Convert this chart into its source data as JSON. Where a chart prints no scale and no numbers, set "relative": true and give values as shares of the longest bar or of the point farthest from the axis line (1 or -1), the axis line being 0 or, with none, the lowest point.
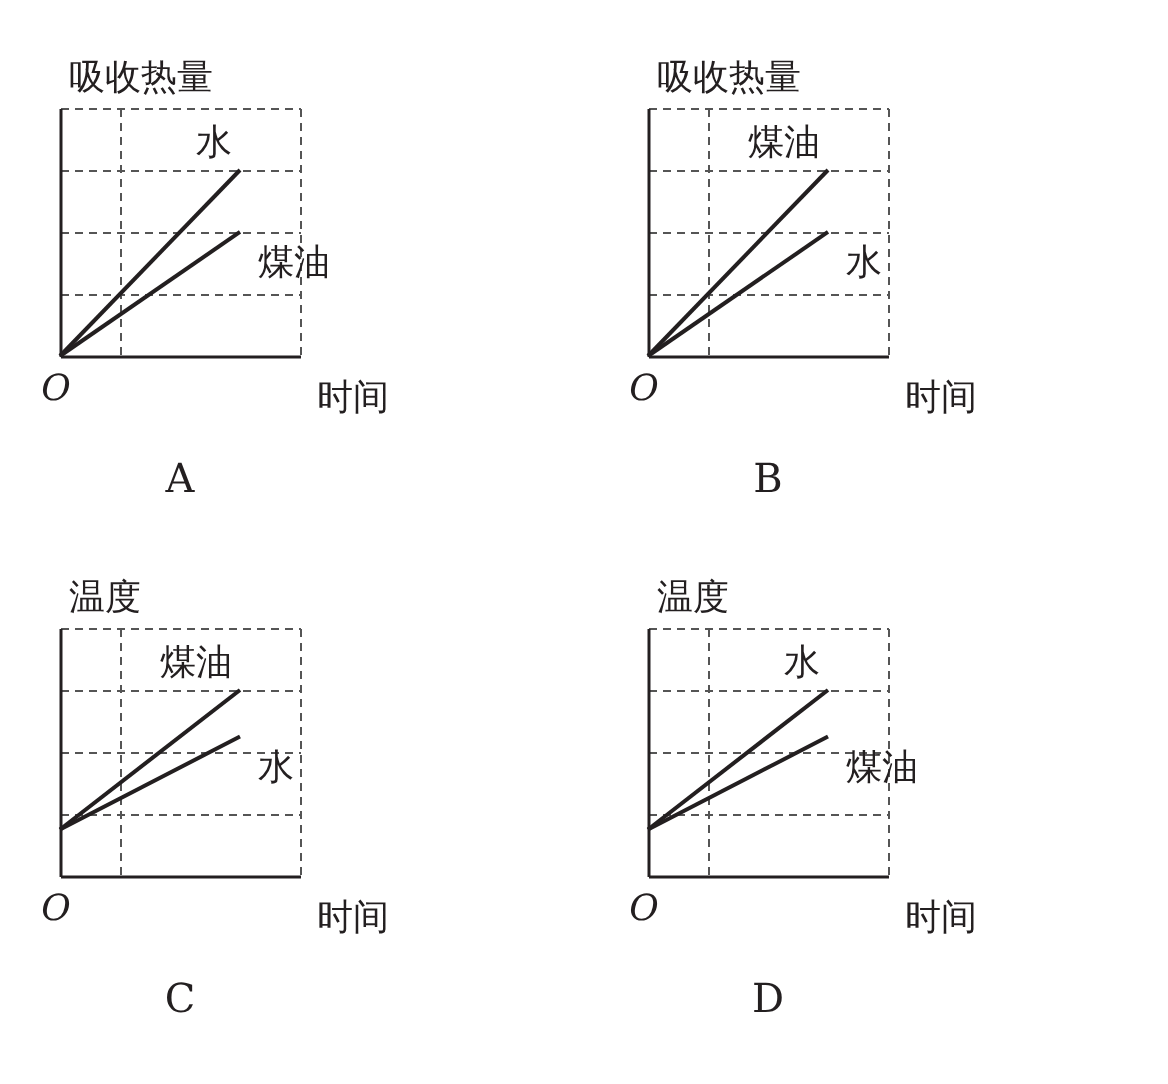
{
  "chart_data": [
    {
      "type": "line",
      "title": "A",
      "xlabel": "时间",
      "ylabel": "吸收热量",
      "categories": [
        null,
        null
      ],
      "relative": true,
      "grid": true,
      "annotations": [
        "O"
      ],
      "series": [
        {
          "name": "水",
          "color": "#231f20",
          "values": [
            0,
            1
          ]
        },
        {
          "name": "煤油",
          "color": "#231f20",
          "values": [
            0,
            0.667
          ]
        }
      ]
    },
    {
      "type": "line",
      "title": "B",
      "xlabel": "时间",
      "ylabel": "吸收热量",
      "categories": [
        null,
        null
      ],
      "relative": true,
      "grid": true,
      "annotations": [
        "O"
      ],
      "series": [
        {
          "name": "煤油",
          "color": "#231f20",
          "values": [
            0,
            1
          ]
        },
        {
          "name": "水",
          "color": "#231f20",
          "values": [
            0,
            0.667
          ]
        }
      ]
    },
    {
      "type": "line",
      "title": "C",
      "xlabel": "时间",
      "ylabel": "温度",
      "categories": [
        null,
        null
      ],
      "relative": true,
      "grid": true,
      "annotations": [
        "O"
      ],
      "series": [
        {
          "name": "煤油",
          "color": "#231f20",
          "values": [
            0.25,
            1
          ]
        },
        {
          "name": "水",
          "color": "#231f20",
          "values": [
            0.25,
            0.75
          ]
        }
      ]
    },
    {
      "type": "line",
      "title": "D",
      "xlabel": "时间",
      "ylabel": "温度",
      "categories": [
        null,
        null
      ],
      "relative": true,
      "grid": true,
      "annotations": [
        "O"
      ],
      "series": [
        {
          "name": "水",
          "color": "#231f20",
          "values": [
            0.25,
            1
          ]
        },
        {
          "name": "煤油",
          "color": "#231f20",
          "values": [
            0.25,
            0.75
          ]
        }
      ]
    }
  ]
}
